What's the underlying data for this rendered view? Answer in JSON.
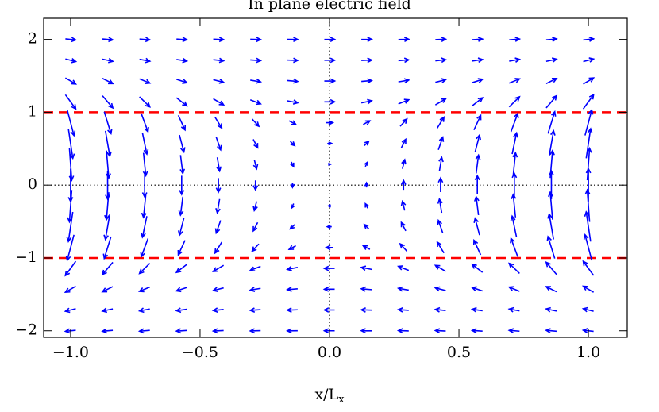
{
  "chart_data": {
    "type": "quiver",
    "title": "In plane electric field",
    "xlabel": "x/L",
    "xlabel_sub": "x",
    "x": [
      -1,
      -0.857,
      -0.714,
      -0.571,
      -0.429,
      -0.286,
      -0.143,
      0,
      0.143,
      0.286,
      0.429,
      0.571,
      0.714,
      0.857,
      1
    ],
    "y": [
      -2,
      -1.714,
      -1.429,
      -1.143,
      -0.857,
      -0.571,
      -0.286,
      0,
      0.286,
      0.571,
      0.857,
      1.143,
      1.429,
      1.714,
      2
    ],
    "u": [
      [
        -0.04,
        -0.04,
        -0.04,
        -0.04,
        -0.04,
        -0.04,
        -0.04,
        -0.04,
        -0.04,
        -0.04,
        -0.04,
        -0.04,
        -0.04,
        -0.04,
        -0.04
      ],
      [
        -0.04,
        -0.04,
        -0.04,
        -0.04,
        -0.04,
        -0.04,
        -0.04,
        -0.04,
        -0.04,
        -0.04,
        -0.04,
        -0.04,
        -0.04,
        -0.04,
        -0.04
      ],
      [
        -0.04,
        -0.04,
        -0.04,
        -0.04,
        -0.04,
        -0.04,
        -0.04,
        -0.04,
        -0.04,
        -0.04,
        -0.04,
        -0.04,
        -0.04,
        -0.04,
        -0.04
      ],
      [
        -0.04,
        -0.04,
        -0.04,
        -0.04,
        -0.04,
        -0.04,
        -0.04,
        -0.04,
        -0.04,
        -0.04,
        -0.04,
        -0.04,
        -0.04,
        -0.04,
        -0.04
      ],
      [
        -0.026,
        -0.026,
        -0.026,
        -0.026,
        -0.026,
        -0.026,
        -0.026,
        -0.026,
        -0.026,
        -0.026,
        -0.026,
        -0.026,
        -0.026,
        -0.026,
        -0.026
      ],
      [
        -0.017,
        -0.017,
        -0.017,
        -0.017,
        -0.017,
        -0.017,
        -0.017,
        -0.017,
        -0.017,
        -0.017,
        -0.017,
        -0.017,
        -0.017,
        -0.017,
        -0.017
      ],
      [
        -0.009,
        -0.009,
        -0.009,
        -0.009,
        -0.009,
        -0.009,
        -0.009,
        -0.009,
        -0.009,
        -0.009,
        -0.009,
        -0.009,
        -0.009,
        -0.009,
        -0.009
      ],
      [
        0,
        0,
        0,
        0,
        0,
        0,
        0,
        0,
        0,
        0,
        0,
        0,
        0,
        0,
        0
      ],
      [
        0.009,
        0.009,
        0.009,
        0.009,
        0.009,
        0.009,
        0.009,
        0.009,
        0.009,
        0.009,
        0.009,
        0.009,
        0.009,
        0.009,
        0.009
      ],
      [
        0.017,
        0.017,
        0.017,
        0.017,
        0.017,
        0.017,
        0.017,
        0.017,
        0.017,
        0.017,
        0.017,
        0.017,
        0.017,
        0.017,
        0.017
      ],
      [
        0.026,
        0.026,
        0.026,
        0.026,
        0.026,
        0.026,
        0.026,
        0.026,
        0.026,
        0.026,
        0.026,
        0.026,
        0.026,
        0.026,
        0.026
      ],
      [
        0.04,
        0.04,
        0.04,
        0.04,
        0.04,
        0.04,
        0.04,
        0.04,
        0.04,
        0.04,
        0.04,
        0.04,
        0.04,
        0.04,
        0.04
      ],
      [
        0.04,
        0.04,
        0.04,
        0.04,
        0.04,
        0.04,
        0.04,
        0.04,
        0.04,
        0.04,
        0.04,
        0.04,
        0.04,
        0.04,
        0.04
      ],
      [
        0.04,
        0.04,
        0.04,
        0.04,
        0.04,
        0.04,
        0.04,
        0.04,
        0.04,
        0.04,
        0.04,
        0.04,
        0.04,
        0.04,
        0.04
      ],
      [
        0.04,
        0.04,
        0.04,
        0.04,
        0.04,
        0.04,
        0.04,
        0.04,
        0.04,
        0.04,
        0.04,
        0.04,
        0.04,
        0.04,
        0.04
      ]
    ],
    "v": [
      [
        -0.015,
        -0.013,
        -0.011,
        -0.009,
        -0.006,
        -0.004,
        -0.002,
        0,
        0.002,
        0.004,
        0.006,
        0.009,
        0.011,
        0.013,
        0.015
      ],
      [
        -0.035,
        -0.03,
        -0.025,
        -0.02,
        -0.015,
        -0.01,
        -0.005,
        0,
        0.005,
        0.01,
        0.015,
        0.02,
        0.025,
        0.03,
        0.035
      ],
      [
        -0.083,
        -0.071,
        -0.059,
        -0.047,
        -0.036,
        -0.024,
        -0.012,
        0,
        0.012,
        0.024,
        0.036,
        0.047,
        0.059,
        0.071,
        0.083
      ],
      [
        -0.195,
        -0.167,
        -0.139,
        -0.111,
        -0.084,
        -0.056,
        -0.028,
        0,
        0.028,
        0.056,
        0.084,
        0.111,
        0.139,
        0.167,
        0.195
      ],
      [
        -0.35,
        -0.3,
        -0.25,
        -0.2,
        -0.15,
        -0.1,
        -0.05,
        0,
        0.05,
        0.1,
        0.15,
        0.2,
        0.25,
        0.3,
        0.35
      ],
      [
        -0.406,
        -0.348,
        -0.29,
        -0.232,
        -0.174,
        -0.116,
        -0.058,
        0,
        0.058,
        0.116,
        0.174,
        0.232,
        0.29,
        0.348,
        0.406
      ],
      [
        -0.439,
        -0.376,
        -0.313,
        -0.251,
        -0.188,
        -0.126,
        -0.063,
        0,
        0.063,
        0.126,
        0.188,
        0.251,
        0.313,
        0.376,
        0.439
      ],
      [
        -0.45,
        -0.386,
        -0.321,
        -0.257,
        -0.193,
        -0.129,
        -0.064,
        0,
        0.064,
        0.129,
        0.193,
        0.257,
        0.321,
        0.386,
        0.45
      ],
      [
        -0.439,
        -0.376,
        -0.313,
        -0.251,
        -0.188,
        -0.126,
        -0.063,
        0,
        0.063,
        0.126,
        0.188,
        0.251,
        0.313,
        0.376,
        0.439
      ],
      [
        -0.406,
        -0.348,
        -0.29,
        -0.232,
        -0.174,
        -0.116,
        -0.058,
        0,
        0.058,
        0.116,
        0.174,
        0.232,
        0.29,
        0.348,
        0.406
      ],
      [
        -0.35,
        -0.3,
        -0.25,
        -0.2,
        -0.15,
        -0.1,
        -0.05,
        0,
        0.05,
        0.1,
        0.15,
        0.2,
        0.25,
        0.3,
        0.35
      ],
      [
        -0.195,
        -0.167,
        -0.139,
        -0.111,
        -0.084,
        -0.056,
        -0.028,
        0,
        0.028,
        0.056,
        0.084,
        0.111,
        0.139,
        0.167,
        0.195
      ],
      [
        -0.083,
        -0.071,
        -0.059,
        -0.047,
        -0.036,
        -0.024,
        -0.012,
        0,
        0.012,
        0.024,
        0.036,
        0.047,
        0.059,
        0.071,
        0.083
      ],
      [
        -0.035,
        -0.03,
        -0.025,
        -0.02,
        -0.015,
        -0.01,
        -0.005,
        0,
        0.005,
        0.01,
        0.015,
        0.02,
        0.025,
        0.03,
        0.035
      ],
      [
        -0.015,
        -0.013,
        -0.011,
        -0.009,
        -0.006,
        -0.004,
        -0.002,
        0,
        0.002,
        0.004,
        0.006,
        0.009,
        0.011,
        0.013,
        0.015
      ]
    ],
    "color": "#0000ff",
    "boundaries": [
      -1,
      1
    ],
    "boundary_color": "#ff0000",
    "zero_lines": true,
    "xlim": [
      -1.104,
      1.15
    ],
    "ylim": [
      -2.09,
      2.29
    ],
    "xticks": [
      {
        "value": -1,
        "label": "−1.0"
      },
      {
        "value": -0.5,
        "label": "−0.5"
      },
      {
        "value": 0,
        "label": "0.0"
      },
      {
        "value": 0.5,
        "label": "0.5"
      },
      {
        "value": 1,
        "label": "1.0"
      }
    ],
    "yticks": [
      {
        "value": -2,
        "label": "−2"
      },
      {
        "value": -1,
        "label": "−1"
      },
      0,
      1,
      2
    ]
  }
}
